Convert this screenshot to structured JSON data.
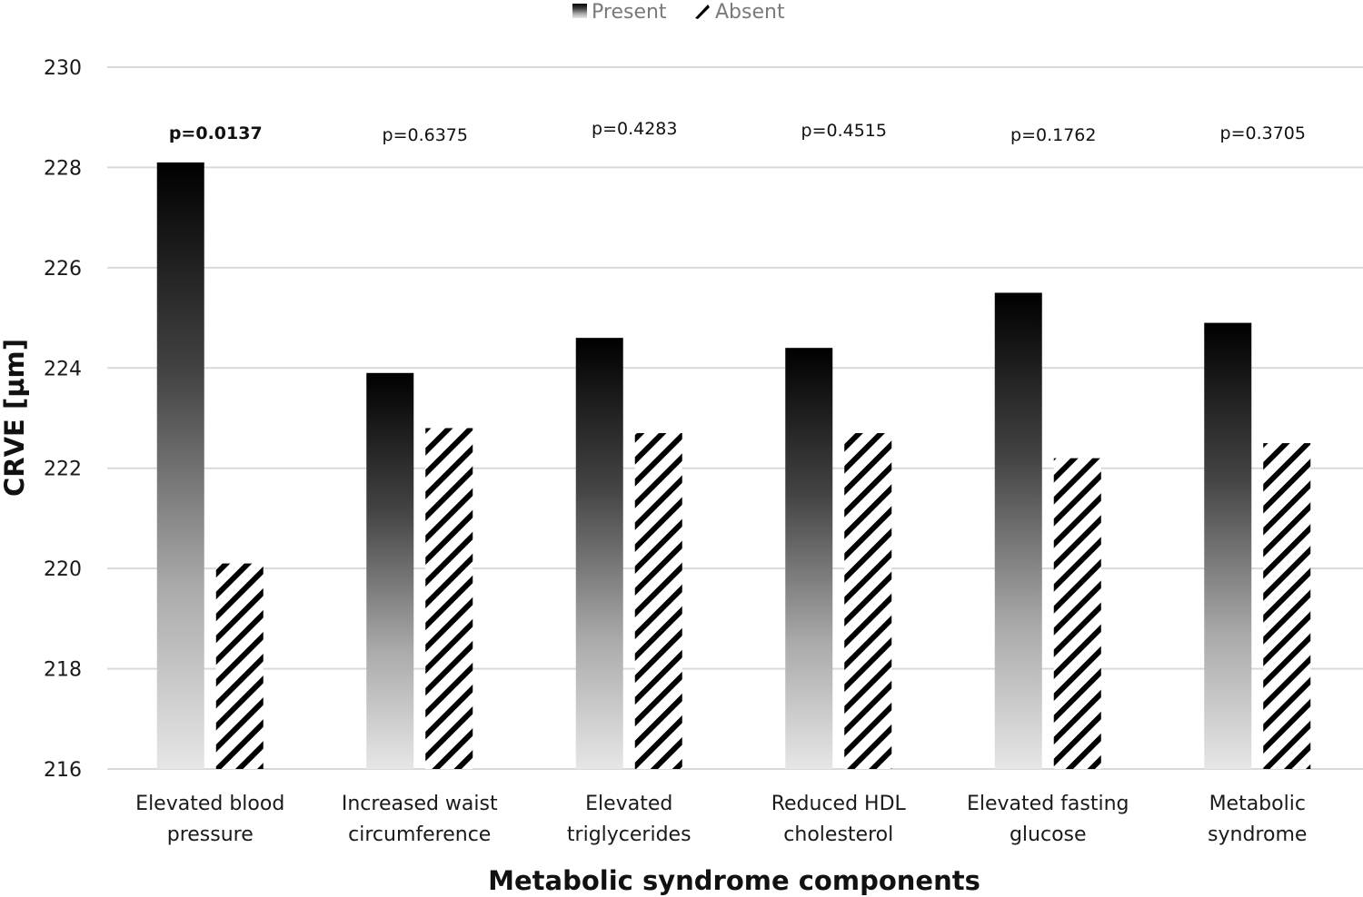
{
  "chart_data": {
    "type": "bar",
    "title": "",
    "xlabel": "Metabolic syndrome components",
    "ylabel": "CRVE [µm]",
    "ylim": [
      216,
      230
    ],
    "yticks": [
      216,
      218,
      220,
      222,
      224,
      226,
      228,
      230
    ],
    "grid": true,
    "legend_position": "top-center",
    "categories": [
      [
        "Elevated blood",
        "pressure"
      ],
      [
        "Increased waist",
        "circumference"
      ],
      [
        "Elevated",
        "triglycerides"
      ],
      [
        "Reduced HDL",
        "cholesterol"
      ],
      [
        "Elevated fasting",
        "glucose"
      ],
      [
        "Metabolic",
        "syndrome"
      ]
    ],
    "series": [
      {
        "name": "Present",
        "style": "gradient-dark",
        "values": [
          228.1,
          223.9,
          224.6,
          224.4,
          225.5,
          224.9
        ]
      },
      {
        "name": "Absent",
        "style": "diagonal-hatch",
        "values": [
          220.1,
          222.8,
          222.7,
          222.7,
          222.2,
          222.5
        ]
      }
    ],
    "annotations": [
      {
        "text": "p=0.0137",
        "bold": true
      },
      {
        "text": "p=0.6375",
        "bold": false
      },
      {
        "text": "p=0.4283",
        "bold": false
      },
      {
        "text": "p=0.4515",
        "bold": false
      },
      {
        "text": "p=0.1762",
        "bold": false
      },
      {
        "text": "p=0.3705",
        "bold": false
      }
    ]
  }
}
